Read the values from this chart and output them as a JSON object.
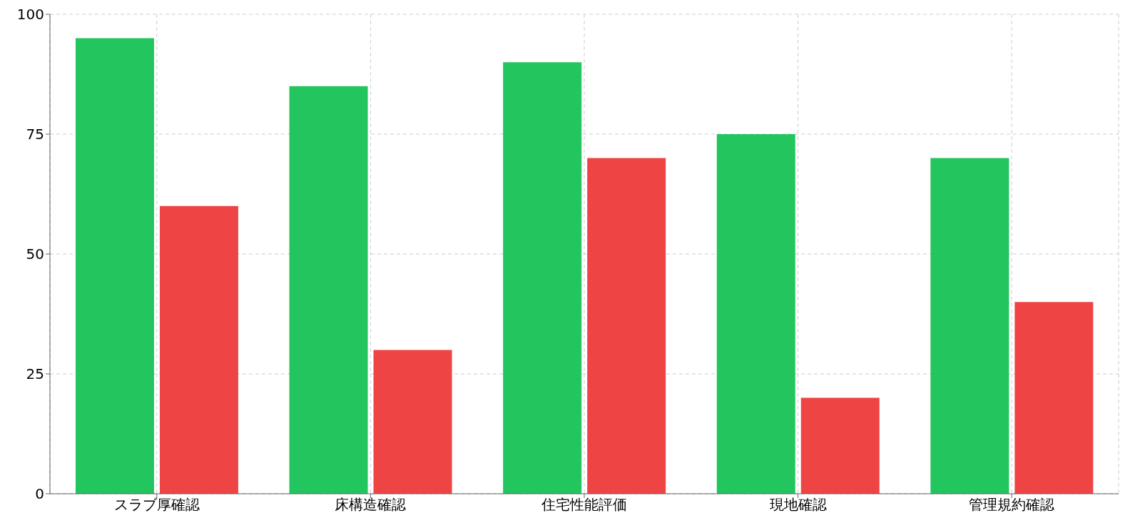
{
  "chart_data": {
    "type": "bar",
    "categories": [
      "スラブ厚確認",
      "床構造確認",
      "住宅性能評価",
      "現地確認",
      "管理規約確認"
    ],
    "series": [
      {
        "color": "#22c55e",
        "values": [
          95,
          85,
          90,
          75,
          70
        ]
      },
      {
        "color": "#ef4444",
        "values": [
          60,
          30,
          70,
          20,
          40
        ]
      }
    ],
    "ylim": [
      0,
      100
    ],
    "yticks": [
      0,
      25,
      50,
      75,
      100
    ],
    "grid": true,
    "legend": false
  }
}
